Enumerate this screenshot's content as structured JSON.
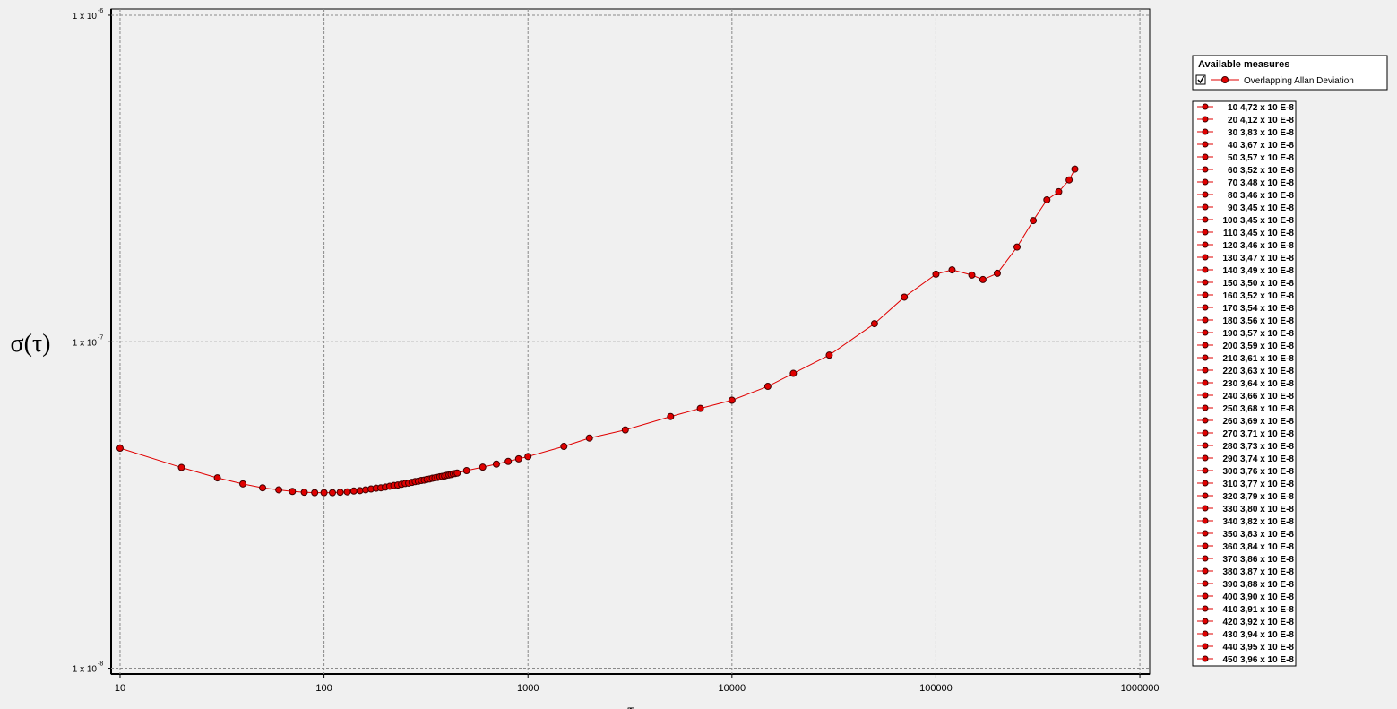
{
  "chart_data": {
    "type": "line",
    "y_label": "σ(τ)",
    "x_label": "τ",
    "log_x": true,
    "log_y": true,
    "grid": true,
    "xlim": [
      9.04,
      1117000
    ],
    "ylim": [
      9.6e-09,
      1.045e-06
    ],
    "xticks": [
      10,
      100,
      1000,
      10000,
      100000,
      1000000
    ],
    "yticks": [
      {
        "value": 1e-06,
        "label": "1 x 10",
        "exponent": "-6"
      },
      {
        "value": 1e-07,
        "label": "1 x 10",
        "exponent": "-7"
      },
      {
        "value": 1e-08,
        "label": "1 x 10",
        "exponent": "-8"
      }
    ],
    "legend_title": "Available measures",
    "series": [
      {
        "name": "Overlapping Allan Deviation",
        "color": "#e00000",
        "marker_edge": "#400000",
        "x": [
          10,
          20,
          30,
          40,
          50,
          60,
          70,
          80,
          90,
          100,
          110,
          120,
          130,
          140,
          150,
          160,
          170,
          180,
          190,
          200,
          210,
          220,
          230,
          240,
          250,
          260,
          270,
          280,
          290,
          300,
          310,
          320,
          330,
          340,
          350,
          360,
          370,
          380,
          390,
          400,
          410,
          420,
          430,
          440,
          450,
          500,
          600,
          700,
          800,
          900,
          1000,
          1500,
          2000,
          3000,
          5000,
          7000,
          10000,
          15000,
          20000,
          30000,
          50000,
          70000,
          100000,
          120000,
          150000,
          170000,
          200000,
          250000,
          300000,
          350000,
          400000,
          450000,
          480000
        ],
        "values": [
          4.72e-08,
          4.12e-08,
          3.83e-08,
          3.67e-08,
          3.57e-08,
          3.52e-08,
          3.48e-08,
          3.46e-08,
          3.45e-08,
          3.45e-08,
          3.45e-08,
          3.46e-08,
          3.47e-08,
          3.49e-08,
          3.5e-08,
          3.52e-08,
          3.54e-08,
          3.56e-08,
          3.57e-08,
          3.59e-08,
          3.61e-08,
          3.63e-08,
          3.64e-08,
          3.66e-08,
          3.68e-08,
          3.69e-08,
          3.71e-08,
          3.73e-08,
          3.74e-08,
          3.76e-08,
          3.77e-08,
          3.79e-08,
          3.8e-08,
          3.82e-08,
          3.83e-08,
          3.84e-08,
          3.86e-08,
          3.87e-08,
          3.88e-08,
          3.9e-08,
          3.91e-08,
          3.92e-08,
          3.94e-08,
          3.95e-08,
          3.96e-08,
          4.03e-08,
          4.13e-08,
          4.22e-08,
          4.3e-08,
          4.38e-08,
          4.45e-08,
          4.78e-08,
          5.07e-08,
          5.37e-08,
          5.9e-08,
          6.25e-08,
          6.62e-08,
          7.3e-08,
          8e-08,
          9.1e-08,
          1.136e-07,
          1.37e-07,
          1.61e-07,
          1.66e-07,
          1.6e-07,
          1.55e-07,
          1.62e-07,
          1.95e-07,
          2.35e-07,
          2.72e-07,
          2.88e-07,
          3.13e-07,
          3.38e-07
        ]
      }
    ],
    "point_list": [
      "10 4,72 x 10 E-8",
      "20 4,12 x 10 E-8",
      "30 3,83 x 10 E-8",
      "40 3,67 x 10 E-8",
      "50 3,57 x 10 E-8",
      "60 3,52 x 10 E-8",
      "70 3,48 x 10 E-8",
      "80 3,46 x 10 E-8",
      "90 3,45 x 10 E-8",
      "100 3,45 x 10 E-8",
      "110 3,45 x 10 E-8",
      "120 3,46 x 10 E-8",
      "130 3,47 x 10 E-8",
      "140 3,49 x 10 E-8",
      "150 3,50 x 10 E-8",
      "160 3,52 x 10 E-8",
      "170 3,54 x 10 E-8",
      "180 3,56 x 10 E-8",
      "190 3,57 x 10 E-8",
      "200 3,59 x 10 E-8",
      "210 3,61 x 10 E-8",
      "220 3,63 x 10 E-8",
      "230 3,64 x 10 E-8",
      "240 3,66 x 10 E-8",
      "250 3,68 x 10 E-8",
      "260 3,69 x 10 E-8",
      "270 3,71 x 10 E-8",
      "280 3,73 x 10 E-8",
      "290 3,74 x 10 E-8",
      "300 3,76 x 10 E-8",
      "310 3,77 x 10 E-8",
      "320 3,79 x 10 E-8",
      "330 3,80 x 10 E-8",
      "340 3,82 x 10 E-8",
      "350 3,83 x 10 E-8",
      "360 3,84 x 10 E-8",
      "370 3,86 x 10 E-8",
      "380 3,87 x 10 E-8",
      "390 3,88 x 10 E-8",
      "400 3,90 x 10 E-8",
      "410 3,91 x 10 E-8",
      "420 3,92 x 10 E-8",
      "430 3,94 x 10 E-8",
      "440 3,95 x 10 E-8",
      "450 3,96 x 10 E-8"
    ]
  }
}
